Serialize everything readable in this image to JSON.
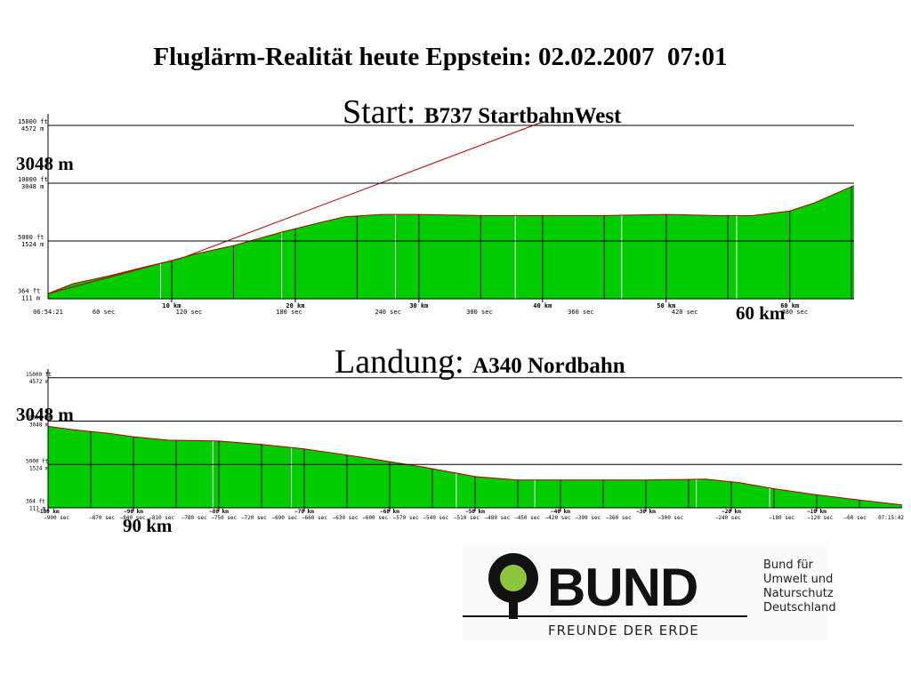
{
  "title": "Fluglärm-Realität heute Eppstein: 02.02.2007  07:01",
  "start_heading": {
    "label": "Start:",
    "aircraft": "B737 StartbahnWest"
  },
  "landing_heading": {
    "label": "Landung:",
    "aircraft": "A340 Nordbahn"
  },
  "annotations": {
    "start_altitude": "3048 m",
    "start_distance": "60 km",
    "landing_altitude": "3048 m",
    "landing_distance": "90 km"
  },
  "logo": {
    "word": "BUND",
    "tagline": "FREUNDE DER ERDE",
    "side_lines": [
      "Bund für",
      "Umwelt und",
      "Naturschutz",
      "Deutschland"
    ]
  },
  "colors": {
    "fill": "#00cc00",
    "profile": "#b00000",
    "grid": "#000000"
  },
  "chart_data": [
    {
      "type": "area",
      "name": "start",
      "xlabel": "",
      "ylabel": "",
      "xlim": [
        0,
        65.2
      ],
      "ylim": [
        0,
        16000
      ],
      "y_ticks": [
        {
          "value": 364,
          "ft": "364 ft",
          "m": "111 m"
        },
        {
          "value": 5000,
          "ft": "5000 ft",
          "m": "1524 m"
        },
        {
          "value": 10000,
          "ft": "10000 ft",
          "m": "3048 m"
        },
        {
          "value": 15000,
          "ft": "15000 ft",
          "m": "4572 m"
        }
      ],
      "km_ticks": [
        {
          "value": 10,
          "label": "10 km"
        },
        {
          "value": 20,
          "label": "20 km"
        },
        {
          "value": 30,
          "label": "30 km"
        },
        {
          "value": 40,
          "label": "40 km"
        },
        {
          "value": 50,
          "label": "50 km"
        },
        {
          "value": 60,
          "label": "60 km"
        }
      ],
      "time_ticks": [
        {
          "value": 0,
          "label": "06:54:21"
        },
        {
          "value": 4.5,
          "label": "60 sec"
        },
        {
          "value": 11.4,
          "label": "120 sec"
        },
        {
          "value": 19.5,
          "label": "180 sec"
        },
        {
          "value": 27.5,
          "label": "240 sec"
        },
        {
          "value": 34.9,
          "label": "300 sec"
        },
        {
          "value": 43.1,
          "label": "360 sec"
        },
        {
          "value": 51.5,
          "label": "420 sec"
        },
        {
          "value": 60.4,
          "label": "480 sec"
        }
      ],
      "white_lines": [
        9.1,
        18.9,
        28.1,
        37.8,
        46.4,
        55.7
      ],
      "profile": [
        [
          0,
          450
        ],
        [
          2,
          1300
        ],
        [
          5,
          2000
        ],
        [
          8,
          2800
        ],
        [
          10,
          3300
        ],
        [
          12,
          3900
        ],
        [
          15,
          4600
        ],
        [
          19,
          5800
        ],
        [
          22,
          6600
        ],
        [
          24,
          7100
        ],
        [
          27,
          7300
        ],
        [
          30,
          7300
        ],
        [
          35,
          7200
        ],
        [
          45,
          7200
        ],
        [
          50,
          7300
        ],
        [
          54,
          7200
        ],
        [
          57,
          7200
        ],
        [
          60,
          7600
        ],
        [
          62,
          8300
        ],
        [
          65.2,
          9800
        ]
      ],
      "planned_climb": [
        [
          0,
          450
        ],
        [
          11,
          3600
        ],
        [
          40,
          15300
        ]
      ]
    },
    {
      "type": "area",
      "name": "landing",
      "xlabel": "",
      "ylabel": "",
      "xlim": [
        -100,
        0
      ],
      "ylim": [
        0,
        16000
      ],
      "y_ticks": [
        {
          "value": 364,
          "ft": "364 ft",
          "m": "111 m"
        },
        {
          "value": 5000,
          "ft": "5000 ft",
          "m": "1524 m"
        },
        {
          "value": 10000,
          "ft": "10000 ft",
          "m": "3048 m"
        },
        {
          "value": 15000,
          "ft": "15000 ft",
          "m": "4572 m"
        }
      ],
      "km_ticks": [
        {
          "value": -100,
          "label": "−100 km"
        },
        {
          "value": -90,
          "label": "−90 km"
        },
        {
          "value": -80,
          "label": "−80 km"
        },
        {
          "value": -70,
          "label": "−70 km"
        },
        {
          "value": -60,
          "label": "−60 km"
        },
        {
          "value": -50,
          "label": "−50 km"
        },
        {
          "value": -40,
          "label": "−40 km"
        },
        {
          "value": -30,
          "label": "−30 km"
        },
        {
          "value": -20,
          "label": "−20 km"
        },
        {
          "value": -10,
          "label": "−10 km"
        }
      ],
      "time_ticks": [
        {
          "value": -99.0,
          "label": "−900 sec"
        },
        {
          "value": -93.7,
          "label": "−870 sec"
        },
        {
          "value": -90.1,
          "label": "−840 sec"
        },
        {
          "value": -86.7,
          "label": "−810 sec"
        },
        {
          "value": -82.9,
          "label": "−780 sec"
        },
        {
          "value": -79.4,
          "label": "−750 sec"
        },
        {
          "value": -75.9,
          "label": "−720 sec"
        },
        {
          "value": -72.3,
          "label": "−690 sec"
        },
        {
          "value": -68.8,
          "label": "−660 sec"
        },
        {
          "value": -65.2,
          "label": "−630 sec"
        },
        {
          "value": -61.7,
          "label": "−600 sec"
        },
        {
          "value": -58.1,
          "label": "−570 sec"
        },
        {
          "value": -54.6,
          "label": "−540 sec"
        },
        {
          "value": -51.0,
          "label": "−510 sec"
        },
        {
          "value": -47.4,
          "label": "−480 sec"
        },
        {
          "value": -43.9,
          "label": "−450 sec"
        },
        {
          "value": -40.3,
          "label": "−420 sec"
        },
        {
          "value": -36.8,
          "label": "−390 sec"
        },
        {
          "value": -33.2,
          "label": "−360 sec"
        },
        {
          "value": -27.1,
          "label": "−300 sec"
        },
        {
          "value": -20.4,
          "label": "−240 sec"
        },
        {
          "value": -14.1,
          "label": "−180 sec"
        },
        {
          "value": -9.6,
          "label": "−120 sec"
        },
        {
          "value": -5.5,
          "label": "−60 sec"
        },
        {
          "value": -1.3,
          "label": "07:15:42"
        }
      ],
      "white_lines": [
        -80.7,
        -71.5,
        -52.2,
        -43.0,
        -24.1,
        -15.5
      ],
      "profile": [
        [
          -100,
          9400
        ],
        [
          -97,
          9000
        ],
        [
          -93,
          8600
        ],
        [
          -90,
          8200
        ],
        [
          -86,
          7800
        ],
        [
          -80,
          7700
        ],
        [
          -75,
          7300
        ],
        [
          -70,
          6800
        ],
        [
          -63,
          5800
        ],
        [
          -56,
          4700
        ],
        [
          -50,
          3600
        ],
        [
          -45,
          3200
        ],
        [
          -30,
          3200
        ],
        [
          -23,
          3300
        ],
        [
          -19,
          2900
        ],
        [
          -15,
          2200
        ],
        [
          -10,
          1500
        ],
        [
          -5,
          900
        ],
        [
          0,
          330
        ]
      ]
    }
  ]
}
